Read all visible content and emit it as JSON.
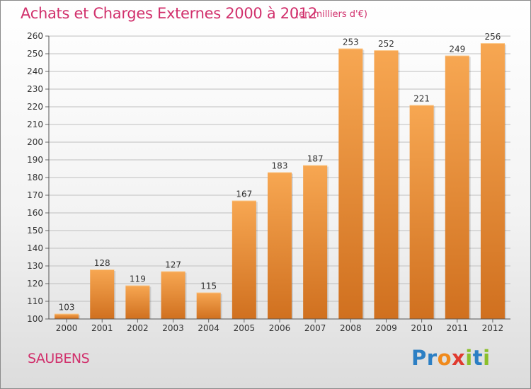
{
  "header": {
    "title": "Achats et Charges Externes 2000 à 2012",
    "unit": "(en milliers d'€)"
  },
  "footer": {
    "commune": "SAUBENS",
    "brand_letters": [
      {
        "char": "P",
        "color": "#2c7fc4"
      },
      {
        "char": "r",
        "color": "#2c7fc4"
      },
      {
        "char": "o",
        "color": "#f08a1c"
      },
      {
        "char": "x",
        "color": "#e03a2f"
      },
      {
        "char": "i",
        "color": "#8bbf2a"
      },
      {
        "char": "t",
        "color": "#2c7fc4"
      },
      {
        "char": "i",
        "color": "#8bbf2a"
      }
    ]
  },
  "colors": {
    "accent": "#d1306c",
    "bar_light": "#f7a752",
    "bar_dark": "#d0701f",
    "grid": "#bfbfbf",
    "axis_text": "#333333"
  },
  "chart_data": {
    "type": "bar",
    "title": "Achats et Charges Externes 2000 à 2012",
    "subtitle": "(en milliers d'€)",
    "xlabel": "",
    "ylabel": "",
    "categories": [
      "2000",
      "2001",
      "2002",
      "2003",
      "2004",
      "2005",
      "2006",
      "2007",
      "2008",
      "2009",
      "2010",
      "2011",
      "2012"
    ],
    "values": [
      103,
      128,
      119,
      127,
      115,
      167,
      183,
      187,
      253,
      252,
      221,
      249,
      256
    ],
    "ylim": [
      100,
      260
    ],
    "y_ticks": [
      100,
      110,
      120,
      130,
      140,
      150,
      160,
      170,
      180,
      190,
      200,
      210,
      220,
      230,
      240,
      250,
      260
    ],
    "data_labels": true,
    "grid": true,
    "legend": "none"
  }
}
